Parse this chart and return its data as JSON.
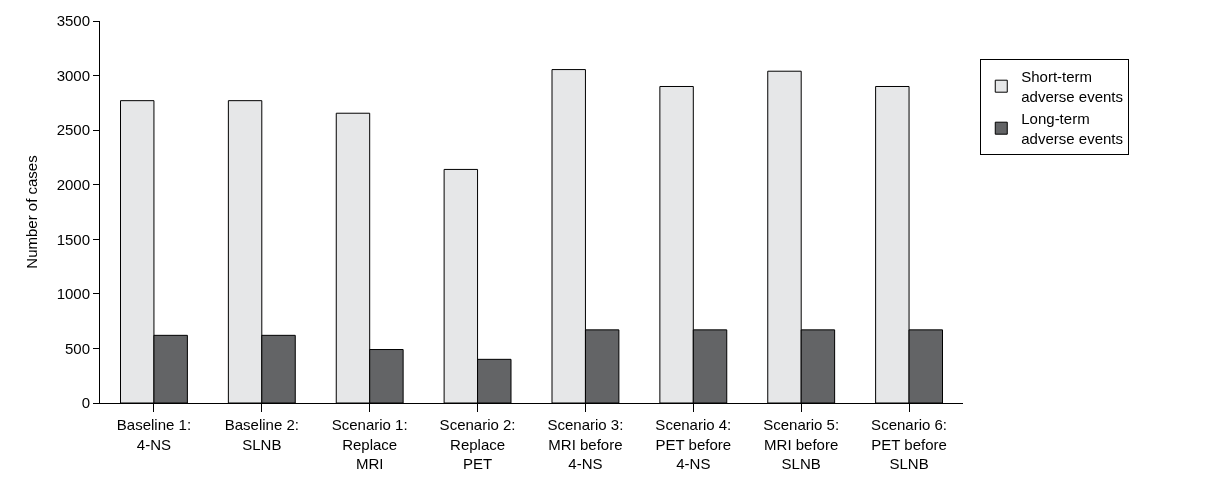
{
  "chart_data": {
    "type": "bar",
    "ylabel": "Number of cases",
    "categories": [
      "Baseline 1:\n4-NS",
      "Baseline 2:\nSLNB",
      "Scenario 1:\nReplace\nMRI",
      "Scenario 2:\nReplace\nPET",
      "Scenario 3:\nMRI before\n4-NS",
      "Scenario 4:\nPET before\n4-NS",
      "Scenario 5:\nMRI before\nSLNB",
      "Scenario 6:\nPET before\nSLNB"
    ],
    "series": [
      {
        "name": "Short-term\nadverse events",
        "color": "#e6e7e8",
        "values": [
          2770,
          2770,
          2655,
          2140,
          3055,
          2900,
          3040,
          2900
        ]
      },
      {
        "name": "Long-term\nadverse events",
        "color": "#636466",
        "values": [
          620,
          620,
          490,
          400,
          670,
          670,
          670,
          670
        ]
      }
    ],
    "ylim": [
      0,
      3500
    ],
    "yticks": [
      0,
      500,
      1000,
      1500,
      2000,
      2500,
      3000,
      3500
    ],
    "grid": false,
    "legend": "top right"
  }
}
